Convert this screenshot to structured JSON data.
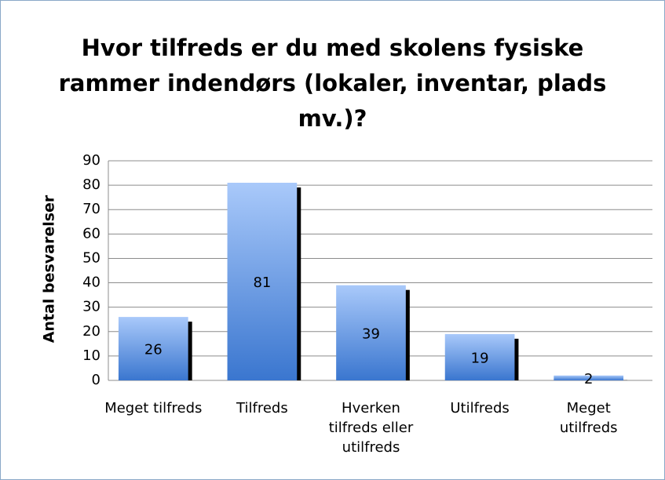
{
  "chart_data": {
    "type": "bar",
    "title": "Hvor tilfreds er du med skolens fysiske rammer indendørs (lokaler, inventar, plads mv.)?",
    "y_axis_label": "Antal besvarelser",
    "categories": [
      "Meget tilfreds",
      "Tilfreds",
      "Hverken tilfreds eller utilfreds",
      "Utilfreds",
      "Meget utilfreds"
    ],
    "values": [
      26,
      81,
      39,
      19,
      2
    ],
    "color": "#4f86d8",
    "ylim": [
      0,
      90
    ],
    "yticks": [
      0,
      10,
      20,
      30,
      40,
      50,
      60,
      70,
      80,
      90
    ],
    "grid": true
  }
}
